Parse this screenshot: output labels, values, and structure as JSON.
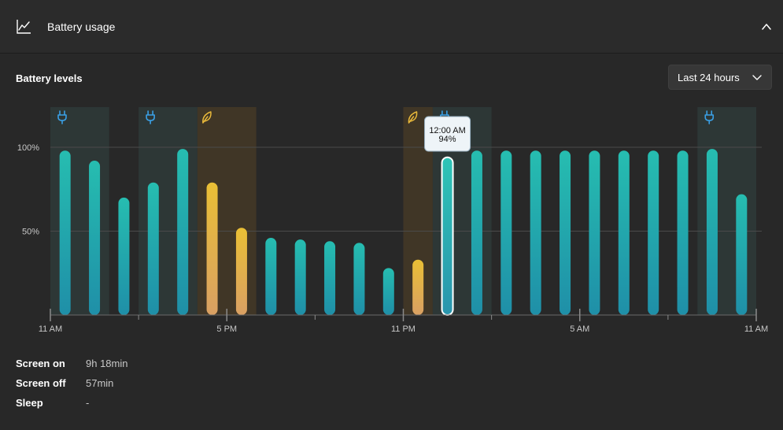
{
  "header": {
    "title": "Battery usage",
    "icon": "line-chart-icon",
    "collapse_icon": "chevron-up-icon"
  },
  "section": {
    "title": "Battery levels",
    "range": {
      "selected": "Last 24 hours",
      "icon": "chevron-down-icon"
    }
  },
  "colors": {
    "accent_teal": "#1fb5a8",
    "saver_yellow": "#e8b83a",
    "charging_blue": "#3aa0e6",
    "charging_band": "#2e3a38",
    "saver_band": "#463a26"
  },
  "chart_data": {
    "type": "bar",
    "ylim": [
      0,
      100
    ],
    "ytick_labels": [
      "100%",
      "50%"
    ],
    "yticks": [
      100,
      50
    ],
    "xtick_labels": [
      "11 AM",
      "5 PM",
      "11 PM",
      "5 AM",
      "11 AM"
    ],
    "slot_count": 24,
    "xtick_slots": [
      0,
      6,
      12,
      18,
      24
    ],
    "values": [
      98,
      92,
      70,
      79,
      99,
      79,
      52,
      46,
      45,
      44,
      43,
      28,
      33,
      94,
      98,
      98,
      98,
      98,
      98,
      98,
      98,
      98,
      99,
      72
    ],
    "modes": [
      "normal",
      "normal",
      "normal",
      "normal",
      "normal",
      "saver",
      "saver",
      "normal",
      "normal",
      "normal",
      "normal",
      "normal",
      "saver",
      "normal",
      "normal",
      "normal",
      "normal",
      "normal",
      "normal",
      "normal",
      "normal",
      "normal",
      "normal",
      "normal"
    ],
    "charging_bands": [
      [
        0,
        2
      ],
      [
        3,
        5
      ],
      [
        13,
        15
      ],
      [
        22,
        24
      ]
    ],
    "saver_bands": [
      [
        5,
        7
      ],
      [
        12,
        13
      ]
    ],
    "charging_icon": "plug-icon",
    "saver_icon": "leaf-icon",
    "tooltip": {
      "slot": 13,
      "time": "12:00 AM",
      "value": "94%"
    }
  },
  "stats": [
    {
      "label": "Screen on",
      "value": "9h 18min"
    },
    {
      "label": "Screen off",
      "value": "57min"
    },
    {
      "label": "Sleep",
      "value": "-"
    }
  ]
}
